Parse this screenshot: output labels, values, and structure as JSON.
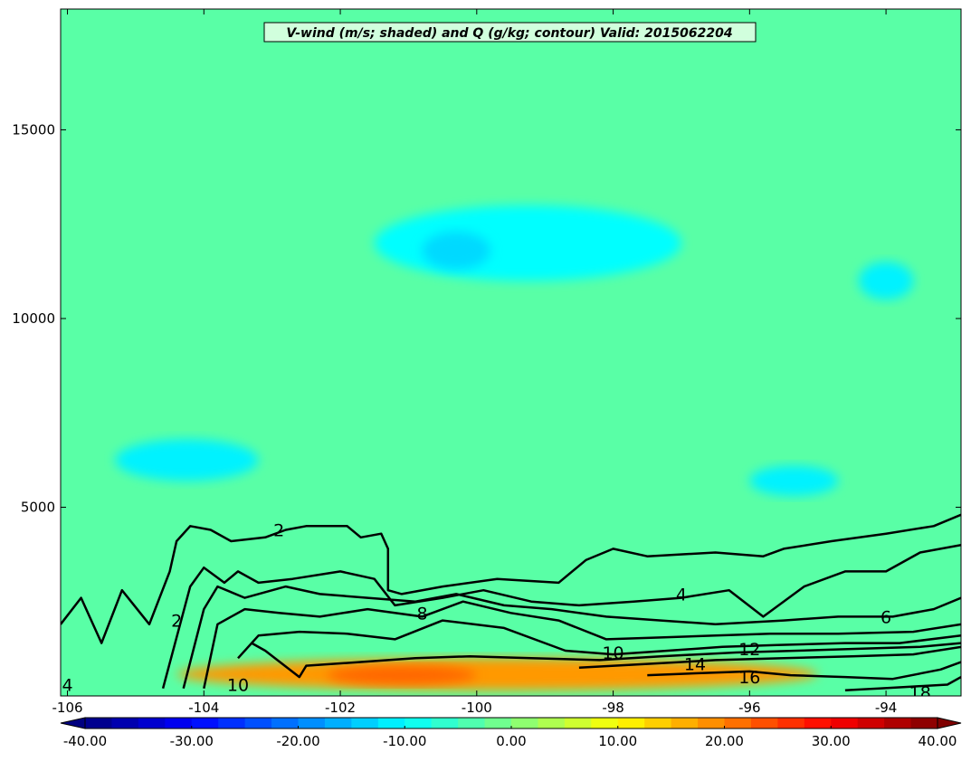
{
  "chart_data": {
    "type": "heatmap",
    "title": "V-wind (m/s; shaded) and Q (g/kg; contour) Valid: 2015062204",
    "xlabel": "",
    "ylabel": "",
    "xlim": [
      -106.1,
      -92.9
    ],
    "ylim": [
      0,
      18200
    ],
    "x_ticks": [
      "-106",
      "-104",
      "-102",
      "-100",
      "-98",
      "-96",
      "-94"
    ],
    "x_tick_values": [
      -106,
      -104,
      -102,
      -100,
      -98,
      -96,
      -94
    ],
    "y_ticks": [
      "5000",
      "10000",
      "15000"
    ],
    "y_tick_values": [
      5000,
      10000,
      15000
    ],
    "shaded_variable": "V-wind (m/s)",
    "contour_variable": "Q (g/kg)",
    "colorbar": {
      "min": -40,
      "max": 40,
      "step": 2.5,
      "extend": "both",
      "colormap": "jet",
      "tick_labels": [
        "-40.00",
        "-30.00",
        "-20.00",
        "-10.00",
        "0.00",
        "10.00",
        "20.00",
        "30.00",
        "40.00"
      ],
      "tick_values": [
        -40,
        -30,
        -20,
        -10,
        0,
        10,
        20,
        30,
        40
      ]
    },
    "shaded_regions": [
      {
        "name": "background",
        "value": -3,
        "lon": [
          -106.1,
          -92.9
        ],
        "z": [
          0,
          18200
        ]
      },
      {
        "name": "upper-jet-band",
        "value": -10,
        "lon": [
          -101.5,
          -97.0
        ],
        "z": [
          11000,
          13000
        ]
      },
      {
        "name": "upper-jet-core",
        "value": -13,
        "lon": [
          -100.8,
          -99.8
        ],
        "z": [
          11300,
          12300
        ]
      },
      {
        "name": "upper-east-patch",
        "value": -11,
        "lon": [
          -94.4,
          -93.6
        ],
        "z": [
          10500,
          11500
        ]
      },
      {
        "name": "mid-west-patch",
        "value": -11,
        "lon": [
          -105.3,
          -103.2
        ],
        "z": [
          5700,
          6800
        ]
      },
      {
        "name": "mid-east-patch",
        "value": -11,
        "lon": [
          -96.0,
          -94.7
        ],
        "z": [
          5300,
          6100
        ]
      },
      {
        "name": "low-level-jet",
        "value": 18,
        "lon": [
          -104.4,
          -95.0
        ],
        "z": [
          150,
          1000
        ]
      },
      {
        "name": "low-level-jet-core",
        "value": 22,
        "lon": [
          -102.2,
          -100.0
        ],
        "z": [
          300,
          800
        ]
      }
    ],
    "contour_levels": [
      2,
      4,
      6,
      8,
      10,
      12,
      14,
      16,
      18
    ],
    "contour_labels": [
      {
        "text": "2",
        "lon": -102.9,
        "z": 4400
      },
      {
        "text": "4",
        "lon": -97.0,
        "z": 2700
      },
      {
        "text": "6",
        "lon": -94.0,
        "z": 2100
      },
      {
        "text": "8",
        "lon": -100.8,
        "z": 2200
      },
      {
        "text": "10",
        "lon": -103.5,
        "z": 300
      },
      {
        "text": "10",
        "lon": -98.0,
        "z": 1150
      },
      {
        "text": "12",
        "lon": -96.0,
        "z": 1250
      },
      {
        "text": "14",
        "lon": -96.8,
        "z": 850
      },
      {
        "text": "16",
        "lon": -96.0,
        "z": 500
      },
      {
        "text": "18",
        "lon": -93.5,
        "z": 100
      },
      {
        "text": "2",
        "lon": -104.4,
        "z": 2000
      },
      {
        "text": "4",
        "lon": -106.0,
        "z": 300
      }
    ],
    "contours": [
      {
        "level": 2,
        "points": [
          [
            -106.1,
            1900
          ],
          [
            -105.8,
            2600
          ],
          [
            -105.5,
            1400
          ],
          [
            -105.2,
            2800
          ],
          [
            -104.8,
            1900
          ],
          [
            -104.5,
            3300
          ],
          [
            -104.4,
            4100
          ],
          [
            -104.2,
            4500
          ],
          [
            -103.9,
            4400
          ],
          [
            -103.6,
            4100
          ],
          [
            -103.1,
            4200
          ],
          [
            -102.8,
            4400
          ],
          [
            -102.5,
            4500
          ],
          [
            -101.9,
            4500
          ],
          [
            -101.7,
            4200
          ],
          [
            -101.4,
            4300
          ],
          [
            -101.3,
            3900
          ],
          [
            -101.3,
            2800
          ],
          [
            -101.1,
            2700
          ],
          [
            -100.5,
            2900
          ],
          [
            -99.7,
            3100
          ],
          [
            -98.8,
            3000
          ],
          [
            -98.4,
            3600
          ],
          [
            -98.0,
            3900
          ],
          [
            -97.5,
            3700
          ],
          [
            -96.5,
            3800
          ],
          [
            -95.8,
            3700
          ],
          [
            -95.5,
            3900
          ],
          [
            -94.8,
            4100
          ],
          [
            -94.0,
            4300
          ],
          [
            -93.3,
            4500
          ],
          [
            -92.9,
            4800
          ]
        ]
      },
      {
        "level": 4,
        "points": [
          [
            -104.6,
            200
          ],
          [
            -104.2,
            2900
          ],
          [
            -104.0,
            3400
          ],
          [
            -103.7,
            3000
          ],
          [
            -103.5,
            3300
          ],
          [
            -103.2,
            3000
          ],
          [
            -102.7,
            3100
          ],
          [
            -102.0,
            3300
          ],
          [
            -101.5,
            3100
          ],
          [
            -101.2,
            2400
          ],
          [
            -100.5,
            2600
          ],
          [
            -99.9,
            2800
          ],
          [
            -99.2,
            2500
          ],
          [
            -98.5,
            2400
          ],
          [
            -97.7,
            2500
          ],
          [
            -97.0,
            2600
          ],
          [
            -96.3,
            2800
          ],
          [
            -95.8,
            2100
          ],
          [
            -95.2,
            2900
          ],
          [
            -94.6,
            3300
          ],
          [
            -94.0,
            3300
          ],
          [
            -93.5,
            3800
          ],
          [
            -92.9,
            4000
          ]
        ]
      },
      {
        "level": 6,
        "points": [
          [
            -104.3,
            200
          ],
          [
            -104.0,
            2300
          ],
          [
            -103.8,
            2900
          ],
          [
            -103.4,
            2600
          ],
          [
            -102.8,
            2900
          ],
          [
            -102.3,
            2700
          ],
          [
            -101.6,
            2600
          ],
          [
            -100.9,
            2500
          ],
          [
            -100.3,
            2700
          ],
          [
            -99.6,
            2400
          ],
          [
            -98.9,
            2300
          ],
          [
            -98.1,
            2100
          ],
          [
            -97.3,
            2000
          ],
          [
            -96.5,
            1900
          ],
          [
            -95.5,
            2000
          ],
          [
            -94.7,
            2100
          ],
          [
            -93.9,
            2100
          ],
          [
            -93.3,
            2300
          ],
          [
            -92.9,
            2600
          ]
        ]
      },
      {
        "level": 8,
        "points": [
          [
            -104.0,
            200
          ],
          [
            -103.8,
            1900
          ],
          [
            -103.4,
            2300
          ],
          [
            -102.9,
            2200
          ],
          [
            -102.3,
            2100
          ],
          [
            -101.6,
            2300
          ],
          [
            -100.8,
            2100
          ],
          [
            -100.2,
            2500
          ],
          [
            -99.5,
            2200
          ],
          [
            -98.8,
            2000
          ],
          [
            -98.1,
            1500
          ],
          [
            -97.3,
            1550
          ],
          [
            -96.5,
            1600
          ],
          [
            -95.7,
            1650
          ],
          [
            -94.7,
            1650
          ],
          [
            -93.6,
            1700
          ],
          [
            -92.9,
            1900
          ]
        ]
      },
      {
        "level": 10,
        "points": [
          [
            -103.5,
            1000
          ],
          [
            -103.2,
            1600
          ],
          [
            -102.6,
            1700
          ],
          [
            -101.9,
            1650
          ],
          [
            -101.2,
            1500
          ],
          [
            -100.5,
            2000
          ],
          [
            -99.6,
            1800
          ],
          [
            -98.7,
            1200
          ],
          [
            -98.0,
            1100
          ],
          [
            -97.2,
            1200
          ],
          [
            -96.4,
            1300
          ],
          [
            -95.6,
            1350
          ],
          [
            -94.6,
            1400
          ],
          [
            -93.8,
            1400
          ],
          [
            -92.9,
            1600
          ]
        ]
      },
      {
        "level": 12,
        "points": [
          [
            -103.3,
            1400
          ],
          [
            -103.1,
            1200
          ],
          [
            -102.6,
            500
          ],
          [
            -102.5,
            800
          ],
          [
            -101.7,
            900
          ],
          [
            -100.9,
            1000
          ],
          [
            -100.1,
            1050
          ],
          [
            -99.2,
            1000
          ],
          [
            -98.2,
            950
          ],
          [
            -97.3,
            1050
          ],
          [
            -96.2,
            1150
          ],
          [
            -95.3,
            1200
          ],
          [
            -94.4,
            1250
          ],
          [
            -93.5,
            1300
          ],
          [
            -92.9,
            1400
          ]
        ]
      },
      {
        "level": 14,
        "points": [
          [
            -98.5,
            750
          ],
          [
            -97.5,
            850
          ],
          [
            -96.5,
            950
          ],
          [
            -95.5,
            1000
          ],
          [
            -94.5,
            1050
          ],
          [
            -93.6,
            1100
          ],
          [
            -92.9,
            1300
          ]
        ]
      },
      {
        "level": 16,
        "points": [
          [
            -97.5,
            550
          ],
          [
            -96.8,
            600
          ],
          [
            -96.0,
            650
          ],
          [
            -95.4,
            550
          ],
          [
            -94.6,
            500
          ],
          [
            -93.9,
            450
          ],
          [
            -93.2,
            700
          ],
          [
            -92.9,
            900
          ]
        ]
      },
      {
        "level": 18,
        "points": [
          [
            -94.6,
            150
          ],
          [
            -94.1,
            200
          ],
          [
            -93.6,
            250
          ],
          [
            -93.1,
            300
          ],
          [
            -92.9,
            500
          ]
        ]
      }
    ]
  }
}
